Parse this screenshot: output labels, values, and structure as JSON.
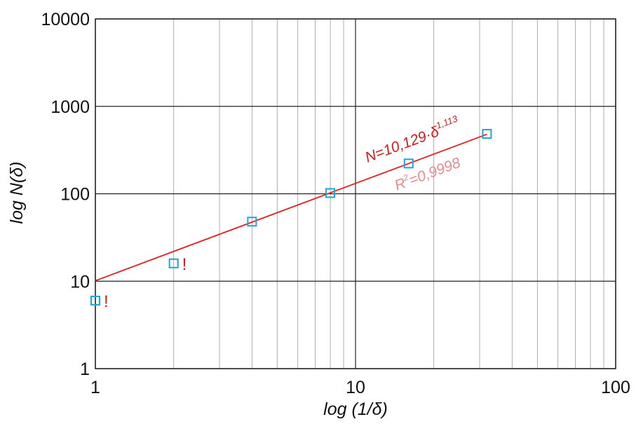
{
  "chart_data": {
    "type": "scatter",
    "title": "",
    "xlabel": "log (1/δ)",
    "ylabel": "log N(δ)",
    "x_scale": "log",
    "y_scale": "log",
    "xlim": [
      1,
      100
    ],
    "ylim": [
      1,
      10000
    ],
    "x_ticks": [
      "1",
      "10",
      "100"
    ],
    "y_ticks": [
      "1",
      "10",
      "100",
      "1000",
      "10000"
    ],
    "grid": true,
    "points": [
      {
        "x": 1,
        "y": 6,
        "flag": "!"
      },
      {
        "x": 2,
        "y": 16,
        "flag": "!"
      },
      {
        "x": 4,
        "y": 48,
        "flag": ""
      },
      {
        "x": 8,
        "y": 102,
        "flag": ""
      },
      {
        "x": 16,
        "y": 222,
        "flag": ""
      },
      {
        "x": 32,
        "y": 485,
        "flag": ""
      }
    ],
    "fit": {
      "coefficient": 10.129,
      "exponent": 1.113,
      "x_range": [
        1,
        32
      ],
      "equation_main": "N=10,129·δ",
      "equation_exponent": "1,113",
      "r2_prefix": "R",
      "r2_sup": "2",
      "r2_rest": "=0,9998"
    },
    "colors": {
      "marker": "#1aa7d6",
      "fit_line": "#e02020",
      "equation": "#d81818",
      "r2": "#e88a8a",
      "flag": "#d81818",
      "grid": "#9a9a9a",
      "major_grid": "#222222"
    }
  }
}
